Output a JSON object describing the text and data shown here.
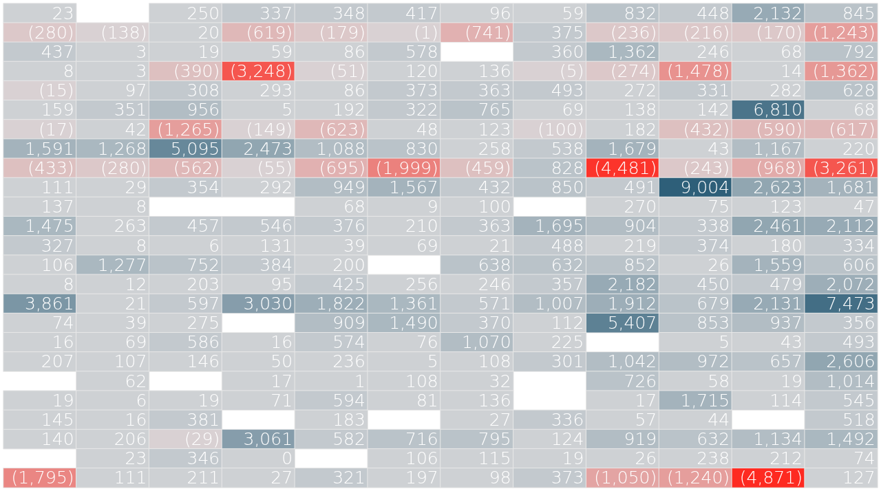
{
  "chart_data": {
    "type": "heatmap",
    "tick_labels": false,
    "categories": [
      null,
      null,
      null,
      null,
      null,
      null,
      null,
      null,
      null,
      null,
      null,
      null
    ],
    "y_categories": [
      null,
      null,
      null,
      null,
      null,
      null,
      null,
      null,
      null,
      null,
      null,
      null,
      null,
      null,
      null,
      null,
      null,
      null,
      null,
      null,
      null,
      null,
      null,
      null,
      null
    ],
    "cells": [
      [
        23,
        null,
        250,
        337,
        348,
        417,
        96,
        59,
        832,
        448,
        2132,
        845
      ],
      [
        -280,
        -138,
        20,
        -619,
        -179,
        -1,
        -741,
        375,
        -236,
        -216,
        -170,
        -1243
      ],
      [
        437,
        3,
        19,
        59,
        86,
        578,
        null,
        360,
        1362,
        246,
        68,
        792
      ],
      [
        8,
        3,
        -390,
        -3248,
        -51,
        120,
        136,
        -5,
        -274,
        -1478,
        14,
        -1362
      ],
      [
        -15,
        97,
        308,
        293,
        86,
        373,
        363,
        493,
        272,
        331,
        282,
        628
      ],
      [
        159,
        351,
        956,
        5,
        192,
        322,
        765,
        69,
        138,
        142,
        6810,
        68
      ],
      [
        -17,
        42,
        -1265,
        -149,
        -623,
        48,
        123,
        -100,
        182,
        -432,
        -590,
        -617
      ],
      [
        1591,
        1268,
        5095,
        2473,
        1088,
        830,
        258,
        538,
        1679,
        43,
        1167,
        220
      ],
      [
        -433,
        -280,
        -562,
        -55,
        -695,
        -1999,
        -459,
        828,
        -4481,
        -243,
        -968,
        -3261
      ],
      [
        111,
        29,
        354,
        292,
        949,
        1567,
        432,
        850,
        491,
        9004,
        2623,
        1681
      ],
      [
        137,
        8,
        null,
        null,
        68,
        9,
        100,
        null,
        270,
        75,
        123,
        47
      ],
      [
        1475,
        263,
        457,
        546,
        376,
        210,
        363,
        1695,
        904,
        338,
        2461,
        2112
      ],
      [
        327,
        8,
        6,
        131,
        39,
        69,
        21,
        488,
        219,
        374,
        180,
        334
      ],
      [
        106,
        1277,
        752,
        384,
        200,
        null,
        638,
        632,
        852,
        26,
        1559,
        606
      ],
      [
        8,
        12,
        203,
        95,
        425,
        256,
        246,
        357,
        2182,
        450,
        479,
        2072
      ],
      [
        3861,
        21,
        597,
        3030,
        1822,
        1361,
        571,
        1007,
        1912,
        679,
        2131,
        7473
      ],
      [
        74,
        39,
        275,
        null,
        909,
        1490,
        370,
        112,
        5407,
        853,
        937,
        356
      ],
      [
        16,
        69,
        586,
        16,
        574,
        76,
        1070,
        225,
        null,
        5,
        43,
        493
      ],
      [
        207,
        107,
        146,
        50,
        236,
        5,
        108,
        301,
        1042,
        972,
        657,
        2606
      ],
      [
        null,
        62,
        null,
        17,
        1,
        108,
        32,
        null,
        726,
        58,
        19,
        1014
      ],
      [
        19,
        6,
        19,
        71,
        594,
        81,
        136,
        null,
        17,
        1715,
        114,
        545
      ],
      [
        145,
        16,
        381,
        null,
        183,
        null,
        27,
        336,
        57,
        44,
        null,
        518
      ],
      [
        140,
        206,
        -29,
        3061,
        582,
        716,
        795,
        124,
        919,
        632,
        1134,
        1492
      ],
      [
        null,
        23,
        346,
        0,
        null,
        106,
        115,
        19,
        26,
        238,
        212,
        74
      ],
      [
        -1795,
        111,
        211,
        27,
        321,
        197,
        98,
        373,
        -1050,
        -1240,
        -4871,
        127
      ]
    ],
    "cell_labels": [
      [
        "23",
        null,
        "250",
        "337",
        "348",
        "417",
        "96",
        "59",
        "832",
        "448",
        "2,132",
        "845"
      ],
      [
        "(280)",
        "(138)",
        "20",
        "(619)",
        "(179)",
        "(1)",
        "(741)",
        "375",
        "(236)",
        "(216)",
        "(170)",
        "(1,243)"
      ],
      [
        "437",
        "3",
        "19",
        "59",
        "86",
        "578",
        null,
        "360",
        "1,362",
        "246",
        "68",
        "792"
      ],
      [
        "8",
        "3",
        "(390)",
        "(3,248)",
        "(51)",
        "120",
        "136",
        "(5)",
        "(274)",
        "(1,478)",
        "14",
        "(1,362)"
      ],
      [
        "(15)",
        "97",
        "308",
        "293",
        "86",
        "373",
        "363",
        "493",
        "272",
        "331",
        "282",
        "628"
      ],
      [
        "159",
        "351",
        "956",
        "5",
        "192",
        "322",
        "765",
        "69",
        "138",
        "142",
        "6,810",
        "68"
      ],
      [
        "(17)",
        "42",
        "(1,265)",
        "(149)",
        "(623)",
        "48",
        "123",
        "(100)",
        "182",
        "(432)",
        "(590)",
        "(617)"
      ],
      [
        "1,591",
        "1,268",
        "5,095",
        "2,473",
        "1,088",
        "830",
        "258",
        "538",
        "1,679",
        "43",
        "1,167",
        "220"
      ],
      [
        "(433)",
        "(280)",
        "(562)",
        "(55)",
        "(695)",
        "(1,999)",
        "(459)",
        "828",
        "(4,481)",
        "(243)",
        "(968)",
        "(3,261)"
      ],
      [
        "111",
        "29",
        "354",
        "292",
        "949",
        "1,567",
        "432",
        "850",
        "491",
        "9,004",
        "2,623",
        "1,681"
      ],
      [
        "137",
        "8",
        null,
        null,
        "68",
        "9",
        "100",
        null,
        "270",
        "75",
        "123",
        "47"
      ],
      [
        "1,475",
        "263",
        "457",
        "546",
        "376",
        "210",
        "363",
        "1,695",
        "904",
        "338",
        "2,461",
        "2,112"
      ],
      [
        "327",
        "8",
        "6",
        "131",
        "39",
        "69",
        "21",
        "488",
        "219",
        "374",
        "180",
        "334"
      ],
      [
        "106",
        "1,277",
        "752",
        "384",
        "200",
        null,
        "638",
        "632",
        "852",
        "26",
        "1,559",
        "606"
      ],
      [
        "8",
        "12",
        "203",
        "95",
        "425",
        "256",
        "246",
        "357",
        "2,182",
        "450",
        "479",
        "2,072"
      ],
      [
        "3,861",
        "21",
        "597",
        "3,030",
        "1,822",
        "1,361",
        "571",
        "1,007",
        "1,912",
        "679",
        "2,131",
        "7,473"
      ],
      [
        "74",
        "39",
        "275",
        null,
        "909",
        "1,490",
        "370",
        "112",
        "5,407",
        "853",
        "937",
        "356"
      ],
      [
        "16",
        "69",
        "586",
        "16",
        "574",
        "76",
        "1,070",
        "225",
        null,
        "5",
        "43",
        "493"
      ],
      [
        "207",
        "107",
        "146",
        "50",
        "236",
        "5",
        "108",
        "301",
        "1,042",
        "972",
        "657",
        "2,606"
      ],
      [
        null,
        "62",
        null,
        "17",
        "1",
        "108",
        "32",
        null,
        "726",
        "58",
        "19",
        "1,014"
      ],
      [
        "19",
        "6",
        "19",
        "71",
        "594",
        "81",
        "136",
        null,
        "17",
        "1,715",
        "114",
        "545"
      ],
      [
        "145",
        "16",
        "381",
        null,
        "183",
        null,
        "27",
        "336",
        "57",
        "44",
        null,
        "518"
      ],
      [
        "140",
        "206",
        "(29)",
        "3,061",
        "582",
        "716",
        "795",
        "124",
        "919",
        "632",
        "1,134",
        "1,492"
      ],
      [
        null,
        "23",
        "346",
        "0",
        null,
        "106",
        "115",
        "19",
        "26",
        "238",
        "212",
        "74"
      ],
      [
        "(1,795)",
        "111",
        "211",
        "27",
        "321",
        "197",
        "98",
        "373",
        "(1,050)",
        "(1,240)",
        "(4,871)",
        "127"
      ]
    ]
  }
}
